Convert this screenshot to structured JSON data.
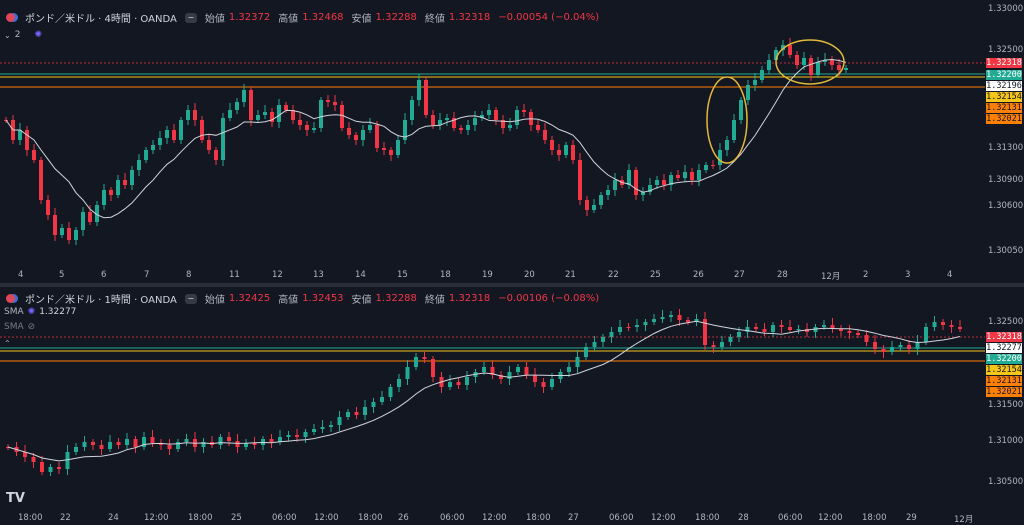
{
  "top_panel": {
    "symbol": "ポンド／米ドル · 4時間 · OANDA",
    "ohlc": {
      "open_label": "始値",
      "open": "1.32372",
      "high_label": "高値",
      "high": "1.32468",
      "low_label": "安値",
      "low": "1.32288",
      "close_label": "終値",
      "close": "1.32318",
      "change": "−0.00054 (−0.04%)"
    },
    "indicator_count": "2",
    "price_axis": [
      "1.33000",
      "1.32500",
      "1.31300",
      "1.30900",
      "1.30600",
      "1.30050"
    ],
    "price_tags": [
      {
        "text": "1.32318",
        "bg": "#f23645",
        "fg": "#ffffff"
      },
      {
        "text": "1.32200",
        "bg": "#22ab94",
        "fg": "#ffffff"
      },
      {
        "text": "1.32196",
        "bg": "#ffffff",
        "fg": "#131722"
      },
      {
        "text": "1.32154",
        "bg": "#f5c518",
        "fg": "#131722"
      },
      {
        "text": "1.32131",
        "bg": "#ff7f00",
        "fg": "#131722"
      },
      {
        "text": "1.32021",
        "bg": "#ff7f00",
        "fg": "#131722"
      }
    ],
    "time_axis": [
      "4",
      "5",
      "6",
      "7",
      "8",
      "11",
      "12",
      "13",
      "14",
      "15",
      "18",
      "19",
      "20",
      "21",
      "22",
      "25",
      "26",
      "27",
      "28",
      "12月",
      "2",
      "3",
      "4"
    ],
    "colors": {
      "up": "#22ab94",
      "down": "#f23645",
      "sma": "#d1d4dc",
      "annotation": "#e2b93b"
    }
  },
  "bottom_panel": {
    "symbol": "ポンド／米ドル · 1時間 · OANDA",
    "ohlc": {
      "open_label": "始値",
      "open": "1.32425",
      "high_label": "高値",
      "high": "1.32453",
      "low_label": "安値",
      "low": "1.32288",
      "close_label": "終値",
      "close": "1.32318",
      "change": "−0.00106 (−0.08%)"
    },
    "indicators": [
      {
        "name": "SMA",
        "value": "1.32277"
      },
      {
        "name": "SMA",
        "value": ""
      }
    ],
    "price_axis": [
      "1.32500",
      "1.31500",
      "1.31000",
      "1.30500"
    ],
    "price_tags": [
      {
        "text": "1.32318",
        "bg": "#f23645",
        "fg": "#ffffff"
      },
      {
        "text": "1.32277",
        "bg": "#ffffff",
        "fg": "#131722"
      },
      {
        "text": "1.32200",
        "bg": "#22ab94",
        "fg": "#ffffff"
      },
      {
        "text": "1.32154",
        "bg": "#f5c518",
        "fg": "#131722"
      },
      {
        "text": "1.32131",
        "bg": "#ff7f00",
        "fg": "#131722"
      },
      {
        "text": "1.32021",
        "bg": "#ff7f00",
        "fg": "#131722"
      }
    ],
    "time_axis": [
      "18:00",
      "22",
      "24",
      "12:00",
      "18:00",
      "25",
      "06:00",
      "12:00",
      "18:00",
      "26",
      "06:00",
      "12:00",
      "18:00",
      "27",
      "06:00",
      "12:00",
      "18:00",
      "28",
      "06:00",
      "12:00",
      "18:00",
      "29",
      "12月"
    ],
    "logo": "TV"
  }
}
